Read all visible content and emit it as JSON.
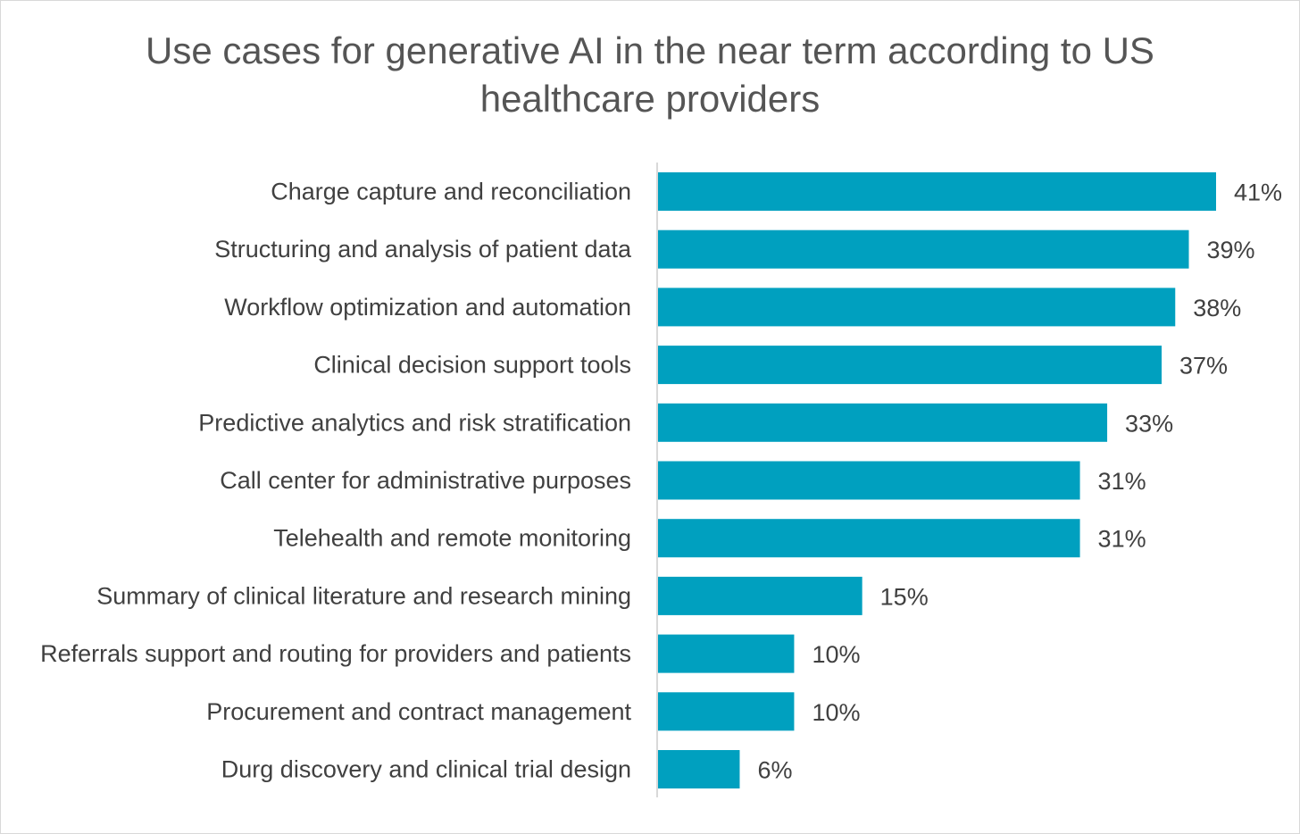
{
  "chart_data": {
    "type": "bar",
    "orientation": "horizontal",
    "title": "Use cases for generative AI in the near term according to US healthcare providers",
    "categories": [
      "Charge capture and reconciliation",
      "Structuring and analysis of patient data",
      "Workflow optimization and automation",
      "Clinical decision support tools",
      "Predictive analytics and risk stratification",
      "Call center for administrative purposes",
      "Telehealth and remote monitoring",
      "Summary of clinical literature and research mining",
      "Referrals support and routing for providers and patients",
      "Procurement and contract management",
      "Durg discovery and clinical trial design"
    ],
    "values": [
      41,
      39,
      38,
      37,
      33,
      31,
      31,
      15,
      10,
      10,
      6
    ],
    "value_labels": [
      "41%",
      "39%",
      "38%",
      "37%",
      "33%",
      "31%",
      "31%",
      "15%",
      "10%",
      "10%",
      "6%"
    ],
    "unit": "%",
    "xlim": [
      0,
      41
    ],
    "bar_color": "#00a0bf",
    "grid": false,
    "legend": "none"
  }
}
